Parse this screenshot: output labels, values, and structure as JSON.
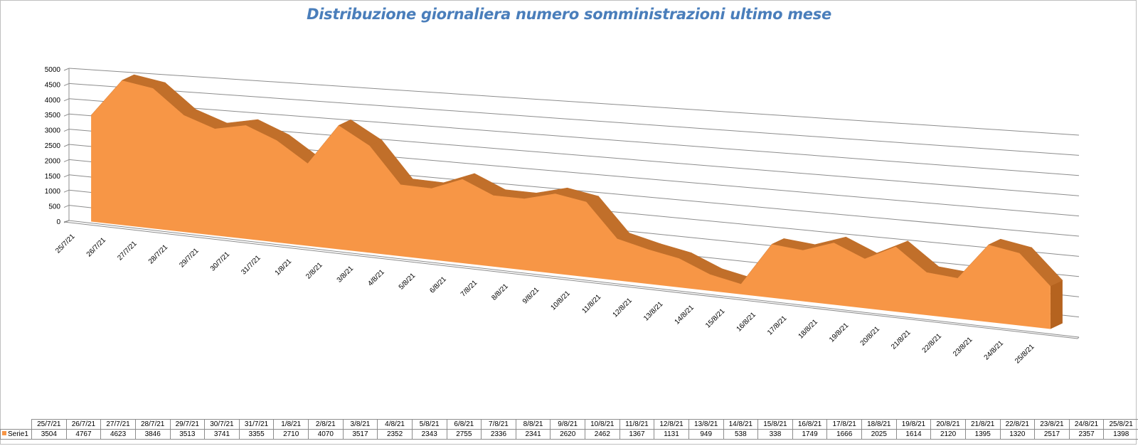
{
  "chart_data": {
    "type": "area",
    "title": "Distribuzione giornaliera numero somministrazioni ultimo mese",
    "categories": [
      "25/7/21",
      "26/7/21",
      "27/7/21",
      "28/7/21",
      "29/7/21",
      "30/7/21",
      "31/7/21",
      "1/8/21",
      "2/8/21",
      "3/8/21",
      "4/8/21",
      "5/8/21",
      "6/8/21",
      "7/8/21",
      "8/8/21",
      "9/8/21",
      "10/8/21",
      "11/8/21",
      "12/8/21",
      "13/8/21",
      "14/8/21",
      "15/8/21",
      "16/8/21",
      "17/8/21",
      "18/8/21",
      "19/8/21",
      "20/8/21",
      "21/8/21",
      "22/8/21",
      "23/8/21",
      "24/8/21",
      "25/8/21"
    ],
    "series": [
      {
        "name": "Serie1",
        "values": [
          3504,
          4767,
          4623,
          3846,
          3513,
          3741,
          3355,
          2710,
          4070,
          3517,
          2352,
          2343,
          2755,
          2336,
          2341,
          2620,
          2462,
          1367,
          1131,
          949,
          538,
          338,
          1749,
          1666,
          2025,
          1614,
          2120,
          1395,
          1320,
          2517,
          2357,
          1398
        ]
      }
    ],
    "y_ticks": [
      "0",
      "500",
      "1000",
      "1500",
      "2000",
      "2500",
      "3000",
      "3500",
      "4000",
      "4500",
      "5000"
    ],
    "ylim": [
      0,
      5000
    ],
    "xlabel": "",
    "ylabel": "",
    "grid": true,
    "legend": "data-table",
    "data_table": true
  },
  "colors": {
    "title": "#4a7ebb",
    "area_front": "#f79646",
    "area_top": "#c16f2a",
    "area_side": "#b5631f",
    "gridline": "#8c8c8c",
    "frame": "#bfbfbf"
  }
}
